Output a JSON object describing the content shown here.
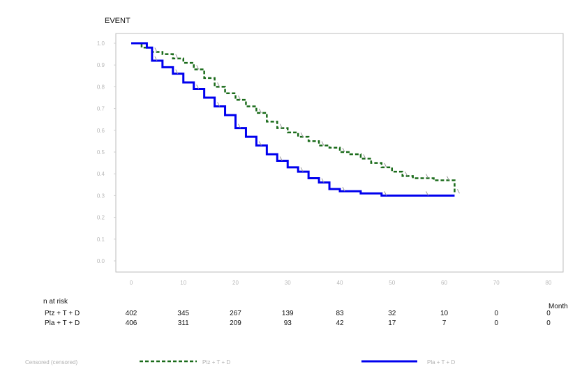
{
  "chart_data": {
    "type": "line",
    "title": "EVENT",
    "xlabel": "Month",
    "ylabel": "",
    "xlim": [
      0,
      70
    ],
    "ylim": [
      0.0,
      1.0
    ],
    "x_ticks": [
      "0",
      "10",
      "20",
      "30",
      "40",
      "50",
      "60",
      "70",
      "80"
    ],
    "y_ticks": [
      "1.0",
      "0.9",
      "0.8",
      "0.7",
      "0.6",
      "0.5",
      "0.4",
      "0.3",
      "0.2",
      "0.1",
      "0.0"
    ],
    "legend_position": "bottom",
    "series": [
      {
        "name": "Ptz + T + D",
        "color": "#1a6b1a",
        "style": "dashed",
        "points": [
          [
            0,
            1.0
          ],
          [
            2,
            0.98
          ],
          [
            4,
            0.96
          ],
          [
            6,
            0.95
          ],
          [
            8,
            0.93
          ],
          [
            10,
            0.91
          ],
          [
            12,
            0.88
          ],
          [
            14,
            0.84
          ],
          [
            16,
            0.8
          ],
          [
            18,
            0.77
          ],
          [
            20,
            0.74
          ],
          [
            22,
            0.71
          ],
          [
            24,
            0.68
          ],
          [
            26,
            0.64
          ],
          [
            28,
            0.61
          ],
          [
            30,
            0.59
          ],
          [
            32,
            0.57
          ],
          [
            34,
            0.55
          ],
          [
            36,
            0.53
          ],
          [
            38,
            0.52
          ],
          [
            40,
            0.5
          ],
          [
            42,
            0.49
          ],
          [
            44,
            0.47
          ],
          [
            46,
            0.45
          ],
          [
            48,
            0.43
          ],
          [
            50,
            0.41
          ],
          [
            52,
            0.39
          ],
          [
            54,
            0.38
          ],
          [
            56,
            0.38
          ],
          [
            58,
            0.37
          ],
          [
            60,
            0.37
          ],
          [
            62,
            0.37
          ],
          [
            62,
            0.31
          ]
        ]
      },
      {
        "name": "Pla + T + D",
        "color": "#0000ee",
        "style": "solid",
        "points": [
          [
            0,
            1.0
          ],
          [
            3,
            0.98
          ],
          [
            4,
            0.92
          ],
          [
            6,
            0.89
          ],
          [
            8,
            0.86
          ],
          [
            10,
            0.82
          ],
          [
            12,
            0.79
          ],
          [
            14,
            0.75
          ],
          [
            16,
            0.71
          ],
          [
            18,
            0.67
          ],
          [
            20,
            0.61
          ],
          [
            22,
            0.57
          ],
          [
            24,
            0.53
          ],
          [
            26,
            0.49
          ],
          [
            28,
            0.46
          ],
          [
            30,
            0.43
          ],
          [
            32,
            0.41
          ],
          [
            34,
            0.38
          ],
          [
            36,
            0.36
          ],
          [
            38,
            0.33
          ],
          [
            40,
            0.32
          ],
          [
            44,
            0.31
          ],
          [
            48,
            0.3
          ],
          [
            52,
            0.3
          ],
          [
            56,
            0.3
          ],
          [
            62,
            0.3
          ]
        ]
      }
    ],
    "risk_table": {
      "title": "n at risk",
      "rows": [
        {
          "label": "Ptz + T + D",
          "values": [
            "402",
            "345",
            "267",
            "139",
            "83",
            "32",
            "10",
            "0",
            "0"
          ]
        },
        {
          "label": "Pla + T + D",
          "values": [
            "406",
            "311",
            "209",
            "93",
            "42",
            "17",
            "7",
            "0",
            "0"
          ]
        }
      ]
    },
    "censored_legend_label": "Censored (censored)"
  }
}
